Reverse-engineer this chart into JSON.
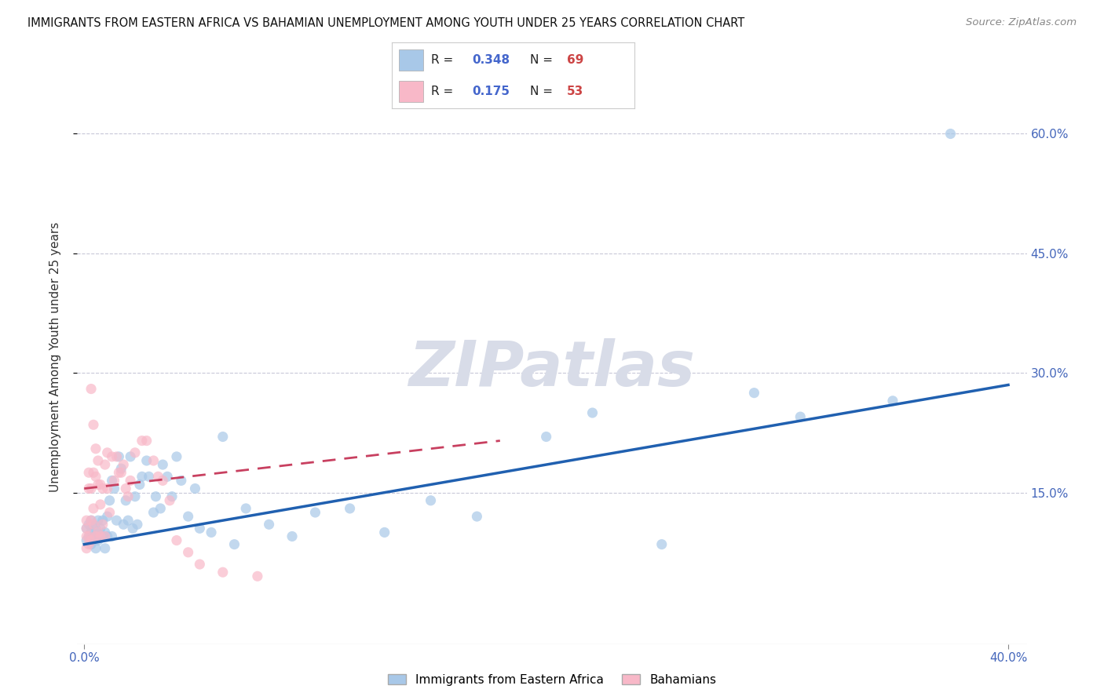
{
  "title": "IMMIGRANTS FROM EASTERN AFRICA VS BAHAMIAN UNEMPLOYMENT AMONG YOUTH UNDER 25 YEARS CORRELATION CHART",
  "source": "Source: ZipAtlas.com",
  "ylabel": "Unemployment Among Youth under 25 years",
  "ytick_labels": [
    "60.0%",
    "45.0%",
    "30.0%",
    "15.0%"
  ],
  "ytick_values": [
    0.6,
    0.45,
    0.3,
    0.15
  ],
  "xlim": [
    -0.003,
    0.408
  ],
  "ylim": [
    -0.04,
    0.68
  ],
  "blue_R": 0.348,
  "blue_N": 69,
  "pink_R": 0.175,
  "pink_N": 53,
  "blue_color": "#a8c8e8",
  "pink_color": "#f8b8c8",
  "blue_line_color": "#2060b0",
  "pink_line_color": "#c84060",
  "background_color": "#ffffff",
  "grid_color": "#c8c8d8",
  "watermark": "ZIPatlas",
  "watermark_color": "#d8dce8",
  "legend_label_blue": "Immigrants from Eastern Africa",
  "legend_label_pink": "Bahamians",
  "blue_line_x0": 0.0,
  "blue_line_y0": 0.085,
  "blue_line_x1": 0.4,
  "blue_line_y1": 0.285,
  "pink_line_x0": 0.0,
  "pink_line_y0": 0.155,
  "pink_line_x1": 0.18,
  "pink_line_y1": 0.215,
  "blue_scatter_x": [
    0.001,
    0.001,
    0.002,
    0.002,
    0.003,
    0.003,
    0.003,
    0.004,
    0.004,
    0.005,
    0.005,
    0.005,
    0.006,
    0.006,
    0.007,
    0.007,
    0.008,
    0.008,
    0.009,
    0.009,
    0.01,
    0.01,
    0.011,
    0.012,
    0.012,
    0.013,
    0.014,
    0.015,
    0.016,
    0.017,
    0.018,
    0.019,
    0.02,
    0.021,
    0.022,
    0.023,
    0.024,
    0.025,
    0.027,
    0.028,
    0.03,
    0.031,
    0.033,
    0.034,
    0.036,
    0.038,
    0.04,
    0.042,
    0.045,
    0.048,
    0.05,
    0.055,
    0.06,
    0.065,
    0.07,
    0.08,
    0.09,
    0.1,
    0.115,
    0.13,
    0.15,
    0.17,
    0.2,
    0.22,
    0.25,
    0.29,
    0.31,
    0.35,
    0.375
  ],
  "blue_scatter_y": [
    0.105,
    0.09,
    0.11,
    0.095,
    0.115,
    0.085,
    0.1,
    0.095,
    0.11,
    0.095,
    0.105,
    0.08,
    0.115,
    0.09,
    0.095,
    0.105,
    0.095,
    0.115,
    0.08,
    0.1,
    0.12,
    0.095,
    0.14,
    0.095,
    0.165,
    0.155,
    0.115,
    0.195,
    0.18,
    0.11,
    0.14,
    0.115,
    0.195,
    0.105,
    0.145,
    0.11,
    0.16,
    0.17,
    0.19,
    0.17,
    0.125,
    0.145,
    0.13,
    0.185,
    0.17,
    0.145,
    0.195,
    0.165,
    0.12,
    0.155,
    0.105,
    0.1,
    0.22,
    0.085,
    0.13,
    0.11,
    0.095,
    0.125,
    0.13,
    0.1,
    0.14,
    0.12,
    0.22,
    0.25,
    0.085,
    0.275,
    0.245,
    0.265,
    0.6
  ],
  "pink_scatter_x": [
    0.001,
    0.001,
    0.001,
    0.001,
    0.002,
    0.002,
    0.002,
    0.002,
    0.003,
    0.003,
    0.003,
    0.003,
    0.004,
    0.004,
    0.004,
    0.004,
    0.005,
    0.005,
    0.005,
    0.006,
    0.006,
    0.006,
    0.007,
    0.007,
    0.007,
    0.008,
    0.008,
    0.009,
    0.009,
    0.01,
    0.01,
    0.011,
    0.012,
    0.013,
    0.014,
    0.015,
    0.016,
    0.017,
    0.018,
    0.019,
    0.02,
    0.022,
    0.025,
    0.027,
    0.03,
    0.032,
    0.034,
    0.037,
    0.04,
    0.045,
    0.05,
    0.06,
    0.075
  ],
  "pink_scatter_y": [
    0.115,
    0.105,
    0.08,
    0.095,
    0.175,
    0.155,
    0.095,
    0.085,
    0.28,
    0.155,
    0.115,
    0.09,
    0.235,
    0.175,
    0.13,
    0.11,
    0.205,
    0.17,
    0.095,
    0.19,
    0.16,
    0.1,
    0.16,
    0.135,
    0.095,
    0.155,
    0.11,
    0.185,
    0.095,
    0.2,
    0.155,
    0.125,
    0.195,
    0.165,
    0.195,
    0.175,
    0.175,
    0.185,
    0.155,
    0.145,
    0.165,
    0.2,
    0.215,
    0.215,
    0.19,
    0.17,
    0.165,
    0.14,
    0.09,
    0.075,
    0.06,
    0.05,
    0.045
  ]
}
